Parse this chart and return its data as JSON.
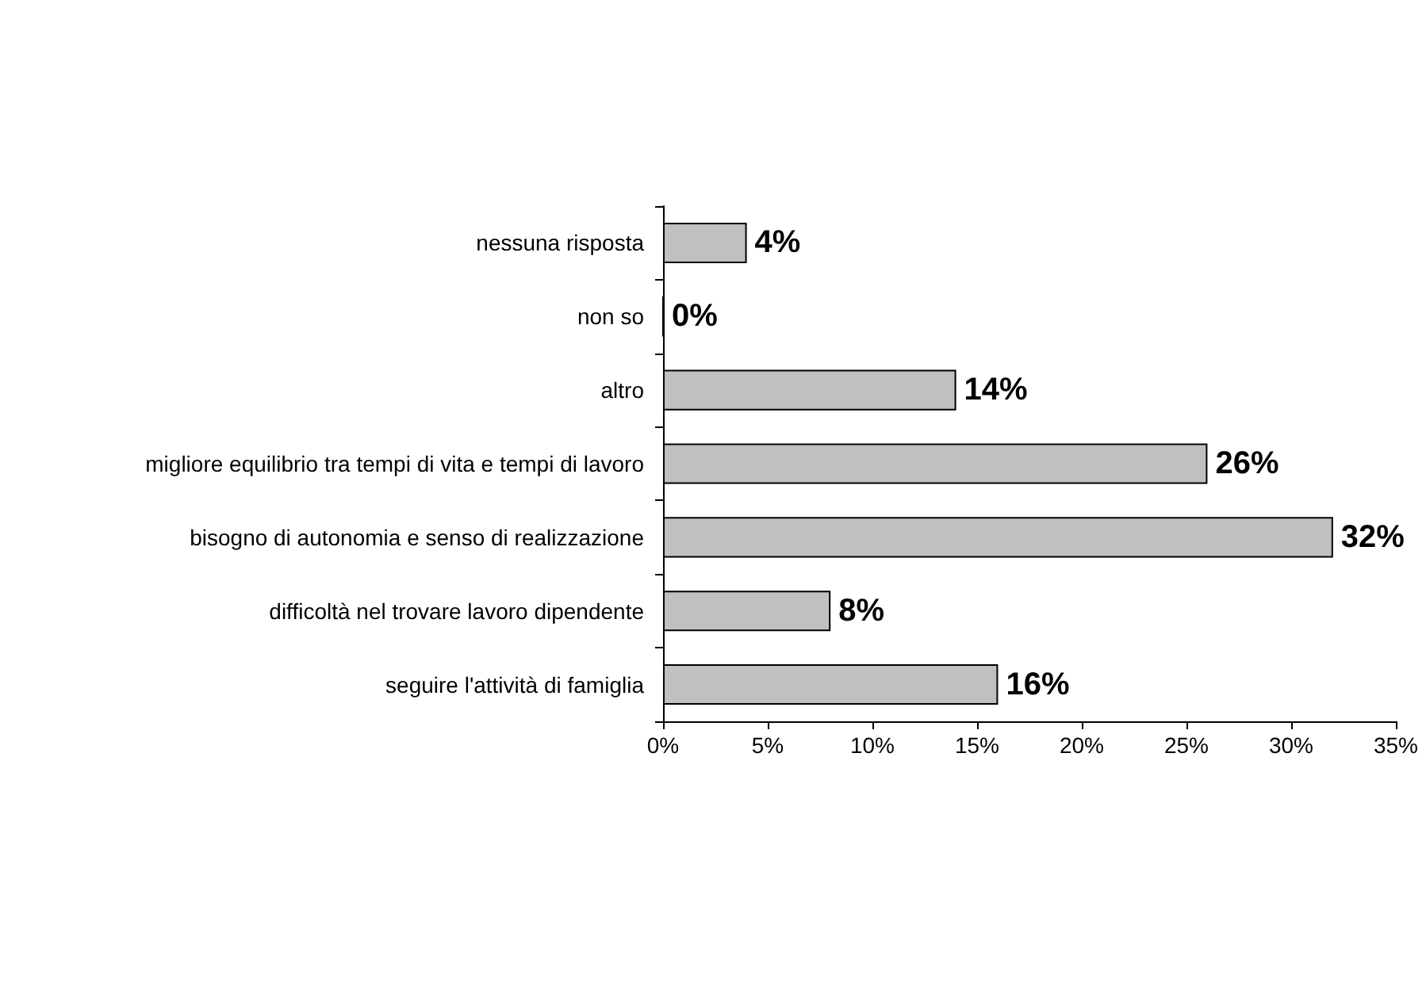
{
  "chart_data": {
    "type": "bar",
    "orientation": "horizontal",
    "categories": [
      "nessuna risposta",
      "non so",
      "altro",
      "migliore equilibrio tra tempi di vita e tempi di lavoro",
      "bisogno di autonomia e senso di realizzazione",
      "difficoltà nel trovare lavoro dipendente",
      "seguire l'attività di famiglia"
    ],
    "values": [
      4,
      0,
      14,
      26,
      32,
      8,
      16
    ],
    "value_labels": [
      "4%",
      "0%",
      "14%",
      "26%",
      "32%",
      "8%",
      "16%"
    ],
    "color": "#c0c0c0",
    "xlim": [
      0,
      35
    ],
    "xticks": [
      {
        "value": 0,
        "label": "0%"
      },
      {
        "value": 5,
        "label": "5%"
      },
      {
        "value": 10,
        "label": "10%"
      },
      {
        "value": 15,
        "label": "15%"
      },
      {
        "value": 20,
        "label": "20%"
      },
      {
        "value": 25,
        "label": "25%"
      },
      {
        "value": 30,
        "label": "30%"
      },
      {
        "value": 35,
        "label": "35%"
      }
    ],
    "grid": false
  }
}
